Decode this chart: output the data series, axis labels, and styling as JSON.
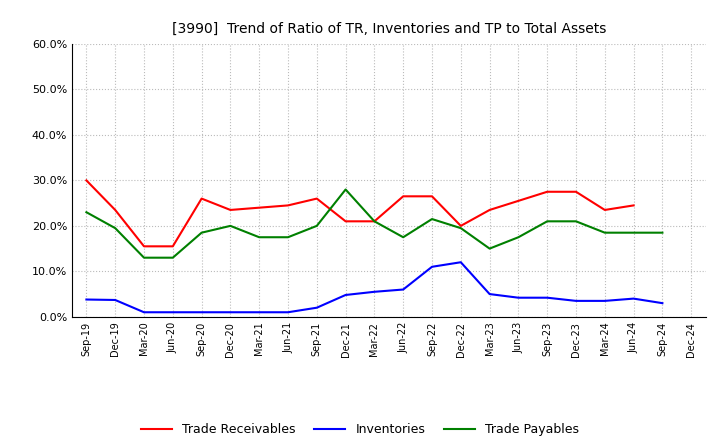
{
  "title": "[3990]  Trend of Ratio of TR, Inventories and TP to Total Assets",
  "labels": [
    "Sep-19",
    "Dec-19",
    "Mar-20",
    "Jun-20",
    "Sep-20",
    "Dec-20",
    "Mar-21",
    "Jun-21",
    "Sep-21",
    "Dec-21",
    "Mar-22",
    "Jun-22",
    "Sep-22",
    "Dec-22",
    "Mar-23",
    "Jun-23",
    "Sep-23",
    "Dec-23",
    "Mar-24",
    "Jun-24",
    "Sep-24",
    "Dec-24"
  ],
  "trade_receivables": [
    0.3,
    0.235,
    0.155,
    0.155,
    0.26,
    0.235,
    0.24,
    0.245,
    0.26,
    0.21,
    0.21,
    0.265,
    0.265,
    0.2,
    0.235,
    0.255,
    0.275,
    0.275,
    0.235,
    0.245,
    null,
    null
  ],
  "inventories": [
    0.038,
    0.037,
    0.01,
    0.01,
    0.01,
    0.01,
    0.01,
    0.01,
    0.02,
    0.048,
    0.055,
    0.06,
    0.11,
    0.12,
    0.05,
    0.042,
    0.042,
    0.035,
    0.035,
    0.04,
    0.03,
    null
  ],
  "trade_payables": [
    0.23,
    0.195,
    0.13,
    0.13,
    0.185,
    0.2,
    0.175,
    0.175,
    0.2,
    0.28,
    0.21,
    0.175,
    0.215,
    0.195,
    0.15,
    0.175,
    0.21,
    0.21,
    0.185,
    0.185,
    0.185,
    null
  ],
  "tr_color": "#ff0000",
  "inv_color": "#0000ff",
  "tp_color": "#008000",
  "ylim": [
    0.0,
    0.6
  ],
  "yticks": [
    0.0,
    0.1,
    0.2,
    0.3,
    0.4,
    0.5,
    0.6
  ],
  "bg_color": "#ffffff",
  "grid_color": "#bbbbbb",
  "legend_labels": [
    "Trade Receivables",
    "Inventories",
    "Trade Payables"
  ]
}
